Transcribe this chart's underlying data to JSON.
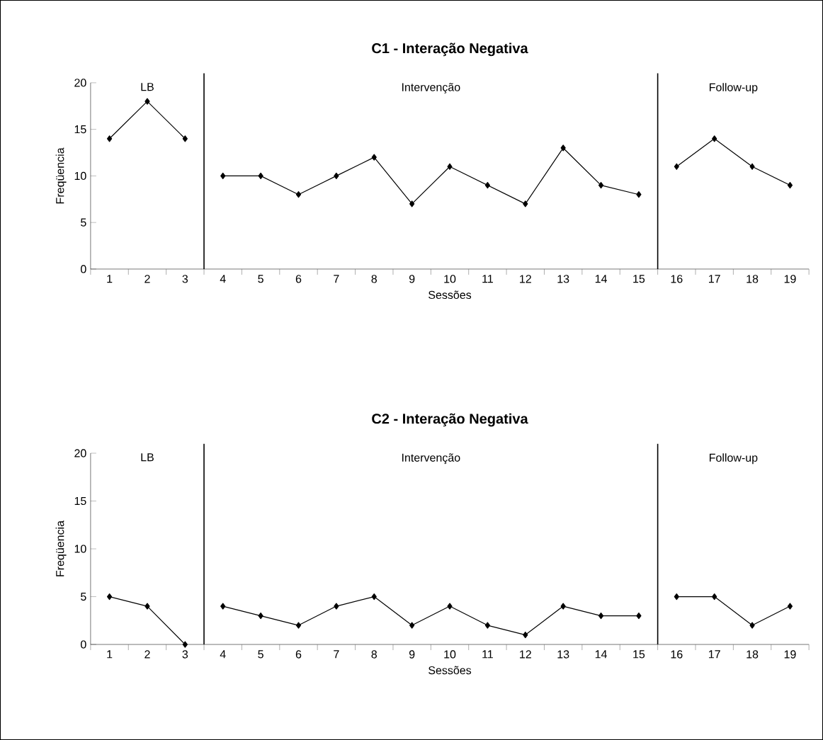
{
  "chart_data": [
    {
      "type": "line",
      "title": "C1 - Interação Negativa",
      "xlabel": "Sessões",
      "ylabel": "Freqüencia",
      "x": [
        1,
        2,
        3,
        4,
        5,
        6,
        7,
        8,
        9,
        10,
        11,
        12,
        13,
        14,
        15,
        16,
        17,
        18,
        19
      ],
      "series": [
        {
          "color": "#000000",
          "values": [
            14,
            18,
            14,
            null,
            null,
            null,
            null,
            null,
            null,
            null,
            null,
            null,
            null,
            null,
            null,
            null,
            null,
            null,
            null
          ]
        },
        {
          "color": "#000000",
          "values": [
            null,
            null,
            null,
            10,
            10,
            8,
            10,
            12,
            7,
            11,
            9,
            7,
            13,
            9,
            8,
            null,
            null,
            null,
            null
          ]
        },
        {
          "color": "#000000",
          "values": [
            null,
            null,
            null,
            null,
            null,
            null,
            null,
            null,
            null,
            null,
            null,
            null,
            null,
            null,
            null,
            11,
            14,
            11,
            9
          ]
        }
      ],
      "xlim": [
        0.5,
        19.5
      ],
      "ylim": [
        0,
        20
      ],
      "xticks": [
        {
          "value": 0.5,
          "label": null
        },
        1,
        {
          "value": 1.5,
          "label": null
        },
        2,
        {
          "value": 2.5,
          "label": null
        },
        3,
        {
          "value": 3.5,
          "label": null
        },
        4,
        {
          "value": 4.5,
          "label": null
        },
        5,
        {
          "value": 5.5,
          "label": null
        },
        6,
        {
          "value": 6.5,
          "label": null
        },
        7,
        {
          "value": 7.5,
          "label": null
        },
        8,
        {
          "value": 8.5,
          "label": null
        },
        9,
        {
          "value": 9.5,
          "label": null
        },
        10,
        {
          "value": 10.5,
          "label": null
        },
        11,
        {
          "value": 11.5,
          "label": null
        },
        12,
        {
          "value": 12.5,
          "label": null
        },
        13,
        {
          "value": 13.5,
          "label": null
        },
        14,
        {
          "value": 14.5,
          "label": null
        },
        15,
        {
          "value": 15.5,
          "label": null
        },
        16,
        {
          "value": 16.5,
          "label": null
        },
        17,
        {
          "value": 17.5,
          "label": null
        },
        18,
        {
          "value": 18.5,
          "label": null
        },
        19,
        {
          "value": 19.5,
          "label": null
        }
      ],
      "yticks": [
        0,
        5,
        10,
        15,
        20
      ],
      "ref_lines": [
        {
          "axis": "x",
          "value": 3.5,
          "color": "#000000"
        },
        {
          "axis": "x",
          "value": 15.5,
          "color": "#000000"
        }
      ],
      "annotations": [
        "LB",
        "Intervenção",
        "Follow-up"
      ],
      "marker": "diamond",
      "line_style": "solid",
      "grid": false
    },
    {
      "type": "line",
      "title": "C2 - Interação Negativa",
      "xlabel": "Sessões",
      "ylabel": "Freqüencia",
      "x": [
        1,
        2,
        3,
        4,
        5,
        6,
        7,
        8,
        9,
        10,
        11,
        12,
        13,
        14,
        15,
        16,
        17,
        18,
        19
      ],
      "series": [
        {
          "color": "#000000",
          "values": [
            5,
            4,
            0,
            null,
            null,
            null,
            null,
            null,
            null,
            null,
            null,
            null,
            null,
            null,
            null,
            null,
            null,
            null,
            null
          ]
        },
        {
          "color": "#000000",
          "values": [
            null,
            null,
            null,
            4,
            3,
            2,
            4,
            5,
            2,
            4,
            2,
            1,
            4,
            3,
            3,
            null,
            null,
            null,
            null
          ]
        },
        {
          "color": "#000000",
          "values": [
            null,
            null,
            null,
            null,
            null,
            null,
            null,
            null,
            null,
            null,
            null,
            null,
            null,
            null,
            null,
            5,
            5,
            2,
            4
          ]
        }
      ],
      "xlim": [
        0.5,
        19.5
      ],
      "ylim": [
        0,
        20
      ],
      "xticks": [
        {
          "value": 0.5,
          "label": null
        },
        1,
        {
          "value": 1.5,
          "label": null
        },
        2,
        {
          "value": 2.5,
          "label": null
        },
        3,
        {
          "value": 3.5,
          "label": null
        },
        4,
        {
          "value": 4.5,
          "label": null
        },
        5,
        {
          "value": 5.5,
          "label": null
        },
        6,
        {
          "value": 6.5,
          "label": null
        },
        7,
        {
          "value": 7.5,
          "label": null
        },
        8,
        {
          "value": 8.5,
          "label": null
        },
        9,
        {
          "value": 9.5,
          "label": null
        },
        10,
        {
          "value": 10.5,
          "label": null
        },
        11,
        {
          "value": 11.5,
          "label": null
        },
        12,
        {
          "value": 12.5,
          "label": null
        },
        13,
        {
          "value": 13.5,
          "label": null
        },
        14,
        {
          "value": 14.5,
          "label": null
        },
        15,
        {
          "value": 15.5,
          "label": null
        },
        16,
        {
          "value": 16.5,
          "label": null
        },
        17,
        {
          "value": 17.5,
          "label": null
        },
        18,
        {
          "value": 18.5,
          "label": null
        },
        19,
        {
          "value": 19.5,
          "label": null
        }
      ],
      "yticks": [
        0,
        5,
        10,
        15,
        20
      ],
      "ref_lines": [
        {
          "axis": "x",
          "value": 3.5,
          "color": "#000000"
        },
        {
          "axis": "x",
          "value": 15.5,
          "color": "#000000"
        }
      ],
      "annotations": [
        "LB",
        "Intervenção",
        "Follow-up"
      ],
      "marker": "diamond",
      "line_style": "solid",
      "grid": false
    }
  ]
}
